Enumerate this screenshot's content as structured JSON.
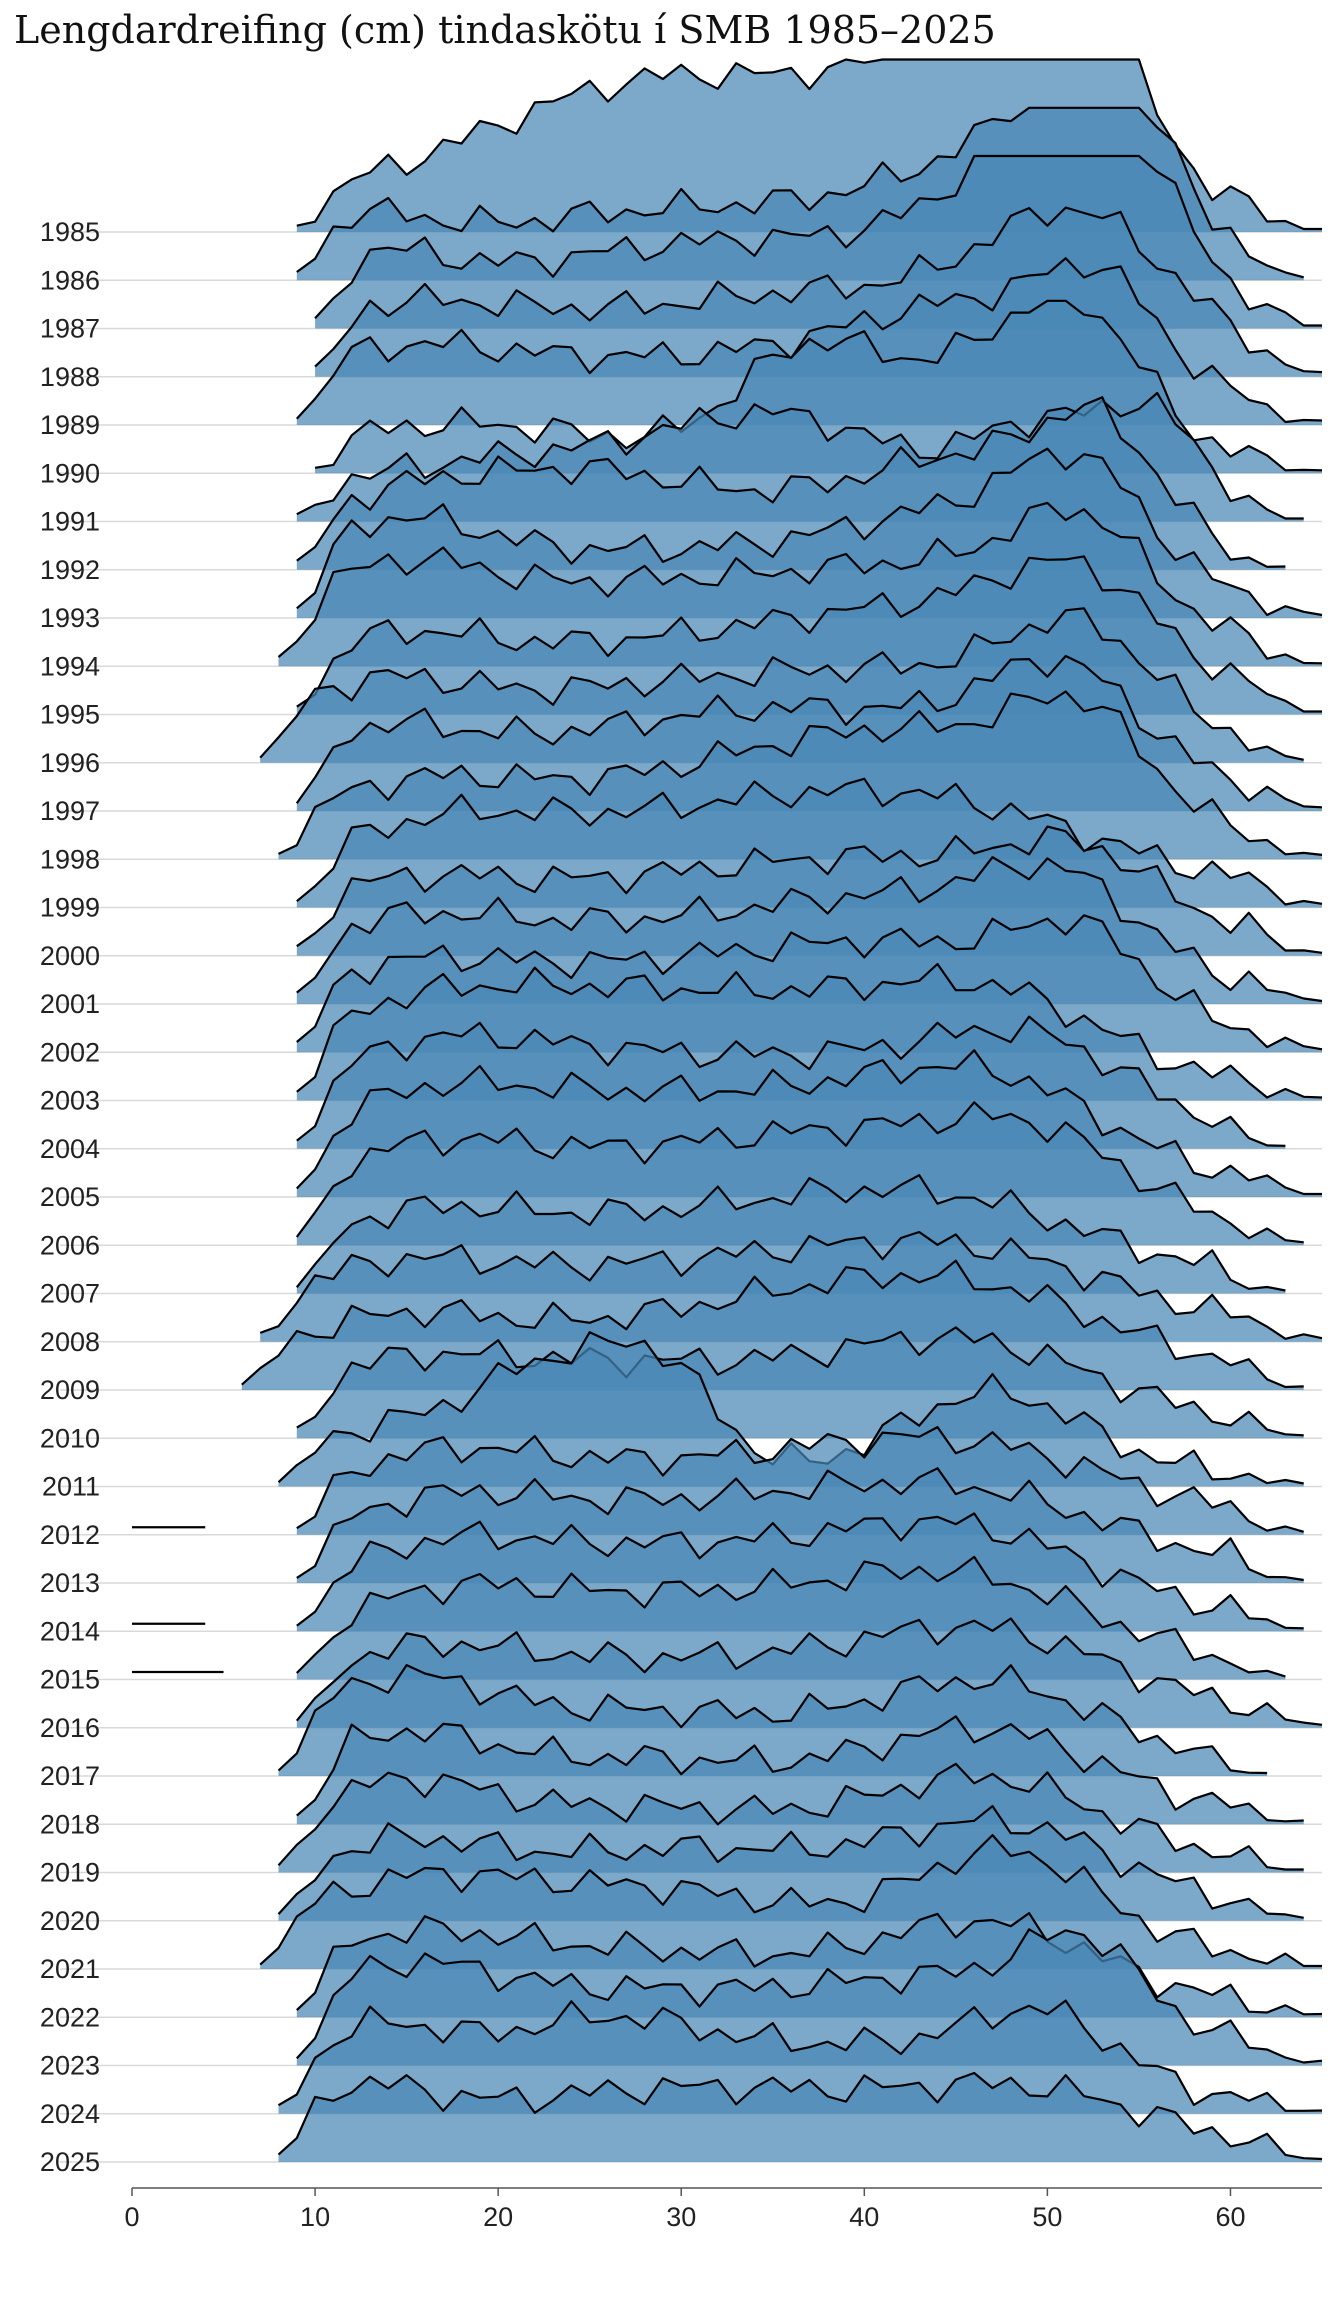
{
  "chart_data": {
    "type": "ridgeline",
    "title": "Lengdardreifing (cm) tindaskötu í SMB 1985–2025",
    "xlabel": "",
    "ylabel": "",
    "xlim": [
      0,
      65
    ],
    "x_ticks": [
      0,
      10,
      20,
      30,
      40,
      50,
      60
    ],
    "years": [
      "1985",
      "1986",
      "1987",
      "1988",
      "1989",
      "1990",
      "1991",
      "1992",
      "1993",
      "1994",
      "1995",
      "1996",
      "1997",
      "1998",
      "1999",
      "2000",
      "2001",
      "2002",
      "2003",
      "2004",
      "2005",
      "2006",
      "2007",
      "2008",
      "2009",
      "2010",
      "2011",
      "2012",
      "2013",
      "2014",
      "2015",
      "2016",
      "2017",
      "2018",
      "2019",
      "2020",
      "2021",
      "2022",
      "2023",
      "2024",
      "2025"
    ],
    "colors": {
      "ridge_fill": "#4a88b6",
      "ridge_fill_dark": "#2e6f9e",
      "ridge_line": "#000000",
      "baseline": "#d9d9d9",
      "axis": "#555555"
    },
    "series": [
      {
        "year": "1985",
        "min": 9,
        "max": 65,
        "peaks": [
          [
            22,
            0.35,
            10
          ],
          [
            29,
            0.35,
            8
          ],
          [
            37,
            0.45,
            10
          ],
          [
            47,
            0.85,
            6
          ],
          [
            51,
            1.0,
            3.5
          ]
        ]
      },
      {
        "year": "1986",
        "min": 9,
        "max": 64,
        "peaks": [
          [
            12,
            0.25,
            4
          ],
          [
            25,
            0.25,
            10
          ],
          [
            38,
            0.25,
            10
          ],
          [
            48,
            0.55,
            6
          ],
          [
            53,
            1.0,
            3.5
          ]
        ]
      },
      {
        "year": "1987",
        "min": 10,
        "max": 65,
        "peaks": [
          [
            13,
            0.3,
            4
          ],
          [
            26,
            0.3,
            10
          ],
          [
            40,
            0.35,
            10
          ],
          [
            49,
            0.65,
            5
          ],
          [
            53,
            1.0,
            3.5
          ]
        ]
      },
      {
        "year": "1988",
        "min": 10,
        "max": 65,
        "peaks": [
          [
            14,
            0.3,
            6
          ],
          [
            28,
            0.3,
            10
          ],
          [
            42,
            0.35,
            8
          ],
          [
            52,
            0.85,
            5
          ]
        ]
      },
      {
        "year": "1989",
        "min": 9,
        "max": 65,
        "peaks": [
          [
            14,
            0.3,
            6
          ],
          [
            30,
            0.35,
            12
          ],
          [
            47,
            0.6,
            7
          ],
          [
            53,
            0.5,
            3
          ]
        ]
      },
      {
        "year": "1990",
        "min": 10,
        "max": 65,
        "peaks": [
          [
            18,
            0.25,
            8
          ],
          [
            37,
            0.7,
            4
          ],
          [
            47,
            0.6,
            5
          ],
          [
            52,
            0.7,
            3.5
          ]
        ]
      },
      {
        "year": "1991",
        "min": 9,
        "max": 64,
        "peaks": [
          [
            22,
            0.35,
            10
          ],
          [
            36,
            0.5,
            6
          ],
          [
            50,
            0.55,
            4
          ],
          [
            56,
            0.5,
            2.5
          ]
        ]
      },
      {
        "year": "1992",
        "min": 9,
        "max": 63,
        "peaks": [
          [
            14,
            0.35,
            5
          ],
          [
            24,
            0.45,
            6
          ],
          [
            36,
            0.3,
            8
          ],
          [
            47,
            0.55,
            6
          ],
          [
            53,
            0.6,
            3
          ]
        ]
      },
      {
        "year": "1993",
        "min": 9,
        "max": 65,
        "peaks": [
          [
            14,
            0.45,
            5
          ],
          [
            28,
            0.35,
            10
          ],
          [
            46,
            0.55,
            7
          ],
          [
            52,
            0.6,
            3.5
          ]
        ]
      },
      {
        "year": "1994",
        "min": 8,
        "max": 65,
        "peaks": [
          [
            14,
            0.45,
            5
          ],
          [
            28,
            0.45,
            10
          ],
          [
            46,
            0.5,
            8
          ],
          [
            52,
            0.55,
            3.5
          ]
        ]
      },
      {
        "year": "1995",
        "min": 9,
        "max": 65,
        "peaks": [
          [
            14,
            0.3,
            5
          ],
          [
            30,
            0.4,
            12
          ],
          [
            46,
            0.45,
            8
          ],
          [
            52,
            0.5,
            4
          ]
        ]
      },
      {
        "year": "1996",
        "min": 7,
        "max": 64,
        "peaks": [
          [
            13,
            0.35,
            5
          ],
          [
            28,
            0.4,
            10
          ],
          [
            44,
            0.4,
            8
          ],
          [
            52,
            0.6,
            4
          ]
        ]
      },
      {
        "year": "1997",
        "min": 9,
        "max": 65,
        "peaks": [
          [
            13,
            0.35,
            5
          ],
          [
            27,
            0.35,
            10
          ],
          [
            42,
            0.45,
            10
          ],
          [
            51,
            0.6,
            4
          ]
        ]
      },
      {
        "year": "1998",
        "min": 8,
        "max": 65,
        "peaks": [
          [
            15,
            0.35,
            6
          ],
          [
            32,
            0.45,
            10
          ],
          [
            45,
            0.55,
            8
          ],
          [
            52,
            0.55,
            3.5
          ]
        ]
      },
      {
        "year": "1999",
        "min": 9,
        "max": 65,
        "peaks": [
          [
            16,
            0.35,
            6
          ],
          [
            30,
            0.45,
            10
          ],
          [
            45,
            0.5,
            9
          ]
        ]
      },
      {
        "year": "2000",
        "min": 9,
        "max": 65,
        "peaks": [
          [
            14,
            0.3,
            6
          ],
          [
            28,
            0.35,
            10
          ],
          [
            44,
            0.45,
            9
          ],
          [
            52,
            0.35,
            4
          ]
        ]
      },
      {
        "year": "2001",
        "min": 9,
        "max": 65,
        "peaks": [
          [
            14,
            0.35,
            6
          ],
          [
            28,
            0.4,
            10
          ],
          [
            44,
            0.5,
            8
          ],
          [
            51,
            0.45,
            4
          ]
        ]
      },
      {
        "year": "2002",
        "min": 9,
        "max": 65,
        "peaks": [
          [
            14,
            0.35,
            6
          ],
          [
            28,
            0.45,
            10
          ],
          [
            44,
            0.5,
            8
          ],
          [
            52,
            0.45,
            3.5
          ]
        ]
      },
      {
        "year": "2003",
        "min": 9,
        "max": 65,
        "peaks": [
          [
            14,
            0.35,
            6
          ],
          [
            24,
            0.5,
            8
          ],
          [
            38,
            0.45,
            8
          ],
          [
            48,
            0.45,
            6
          ]
        ]
      },
      {
        "year": "2004",
        "min": 9,
        "max": 63,
        "peaks": [
          [
            15,
            0.45,
            6
          ],
          [
            26,
            0.45,
            8
          ],
          [
            42,
            0.45,
            8
          ],
          [
            50,
            0.4,
            5
          ]
        ]
      },
      {
        "year": "2005",
        "min": 9,
        "max": 65,
        "peaks": [
          [
            15,
            0.45,
            6
          ],
          [
            26,
            0.45,
            8
          ],
          [
            40,
            0.45,
            8
          ],
          [
            48,
            0.45,
            6
          ]
        ]
      },
      {
        "year": "2006",
        "min": 9,
        "max": 64,
        "peaks": [
          [
            15,
            0.4,
            6
          ],
          [
            28,
            0.45,
            10
          ],
          [
            42,
            0.45,
            8
          ],
          [
            50,
            0.4,
            5
          ]
        ]
      },
      {
        "year": "2007",
        "min": 9,
        "max": 63,
        "peaks": [
          [
            15,
            0.35,
            6
          ],
          [
            30,
            0.4,
            10
          ],
          [
            45,
            0.45,
            8
          ]
        ]
      },
      {
        "year": "2008",
        "min": 7,
        "max": 65,
        "peaks": [
          [
            14,
            0.35,
            6
          ],
          [
            30,
            0.4,
            10
          ],
          [
            46,
            0.45,
            8
          ]
        ]
      },
      {
        "year": "2009",
        "min": 6,
        "max": 64,
        "peaks": [
          [
            14,
            0.35,
            6
          ],
          [
            32,
            0.4,
            10
          ],
          [
            46,
            0.5,
            8
          ]
        ]
      },
      {
        "year": "2010",
        "min": 9,
        "max": 64,
        "peaks": [
          [
            14,
            0.3,
            6
          ],
          [
            28,
            0.4,
            10
          ],
          [
            46,
            0.5,
            7
          ]
        ]
      },
      {
        "year": "2011",
        "min": 8,
        "max": 64,
        "peaks": [
          [
            14,
            0.3,
            5
          ],
          [
            23,
            0.65,
            4
          ],
          [
            29,
            0.6,
            3
          ],
          [
            47,
            0.55,
            5
          ]
        ]
      },
      {
        "year": "2012",
        "min": 9,
        "max": 64,
        "peaks": [
          [
            16,
            0.35,
            6
          ],
          [
            30,
            0.35,
            10
          ],
          [
            46,
            0.45,
            8
          ]
        ],
        "extra": [
          [
            0,
            0.05
          ],
          [
            4,
            0.05
          ]
        ]
      },
      {
        "year": "2013",
        "min": 9,
        "max": 64,
        "peaks": [
          [
            16,
            0.35,
            6
          ],
          [
            30,
            0.4,
            10
          ],
          [
            46,
            0.45,
            8
          ]
        ]
      },
      {
        "year": "2014",
        "min": 9,
        "max": 64,
        "peaks": [
          [
            16,
            0.35,
            6
          ],
          [
            30,
            0.45,
            10
          ],
          [
            46,
            0.5,
            7
          ]
        ],
        "extra": [
          [
            0,
            0.05
          ],
          [
            4,
            0.05
          ]
        ]
      },
      {
        "year": "2015",
        "min": 9,
        "max": 63,
        "peaks": [
          [
            16,
            0.35,
            6
          ],
          [
            30,
            0.45,
            10
          ],
          [
            46,
            0.5,
            7
          ]
        ],
        "extra": [
          [
            0,
            0.05
          ],
          [
            5,
            0.05
          ]
        ]
      },
      {
        "year": "2016",
        "min": 9,
        "max": 65,
        "peaks": [
          [
            15,
            0.35,
            6
          ],
          [
            30,
            0.35,
            10
          ],
          [
            47,
            0.5,
            7
          ]
        ]
      },
      {
        "year": "2017",
        "min": 8,
        "max": 62,
        "peaks": [
          [
            14,
            0.45,
            5
          ],
          [
            28,
            0.35,
            10
          ],
          [
            47,
            0.5,
            6
          ]
        ]
      },
      {
        "year": "2018",
        "min": 9,
        "max": 64,
        "peaks": [
          [
            14,
            0.4,
            5
          ],
          [
            28,
            0.35,
            10
          ],
          [
            47,
            0.5,
            6
          ]
        ]
      },
      {
        "year": "2019",
        "min": 8,
        "max": 64,
        "peaks": [
          [
            14,
            0.4,
            5
          ],
          [
            28,
            0.35,
            10
          ],
          [
            47,
            0.5,
            6
          ]
        ]
      },
      {
        "year": "2020",
        "min": 8,
        "max": 64,
        "peaks": [
          [
            14,
            0.35,
            5
          ],
          [
            30,
            0.4,
            10
          ],
          [
            48,
            0.5,
            6
          ]
        ]
      },
      {
        "year": "2021",
        "min": 7,
        "max": 65,
        "peaks": [
          [
            14,
            0.35,
            6
          ],
          [
            28,
            0.45,
            10
          ],
          [
            48,
            0.65,
            5
          ]
        ]
      },
      {
        "year": "2022",
        "min": 9,
        "max": 65,
        "peaks": [
          [
            14,
            0.35,
            6
          ],
          [
            28,
            0.35,
            10
          ],
          [
            47,
            0.5,
            6
          ]
        ]
      },
      {
        "year": "2023",
        "min": 9,
        "max": 65,
        "peaks": [
          [
            14,
            0.4,
            5
          ],
          [
            26,
            0.4,
            10
          ],
          [
            46,
            0.45,
            8
          ],
          [
            52,
            0.45,
            3
          ]
        ]
      },
      {
        "year": "2024",
        "min": 8,
        "max": 65,
        "peaks": [
          [
            13,
            0.45,
            4
          ],
          [
            25,
            0.5,
            6
          ],
          [
            40,
            0.35,
            8
          ],
          [
            50,
            0.45,
            4
          ]
        ]
      },
      {
        "year": "2025",
        "min": 8,
        "max": 65,
        "peaks": [
          [
            12,
            0.3,
            4
          ],
          [
            25,
            0.3,
            10
          ],
          [
            40,
            0.25,
            10
          ],
          [
            50,
            0.25,
            6
          ]
        ]
      }
    ]
  }
}
